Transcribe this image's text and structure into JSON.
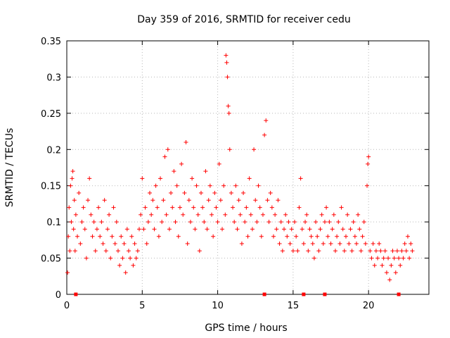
{
  "chart_data": {
    "type": "scatter",
    "title": "Day 359 of 2016, SRMTID for receiver cedu",
    "xlabel": "GPS time / hours",
    "ylabel": "SRMTID / TECUs",
    "xlim": [
      0,
      24
    ],
    "ylim": [
      0,
      0.35
    ],
    "xticks": [
      0,
      5,
      10,
      15,
      20
    ],
    "xtick_labels": [
      "0",
      "5",
      "10",
      "15",
      "20"
    ],
    "yticks": [
      0,
      0.05,
      0.1,
      0.15,
      0.2,
      0.25,
      0.3,
      0.35
    ],
    "ytick_labels": [
      "0",
      "0.05",
      "0.1",
      "0.15",
      "0.2",
      "0.25",
      "0.3",
      "0.35"
    ],
    "grid": true,
    "marker": "+",
    "series_color": "#ff0000",
    "series": [
      {
        "name": "SRMTID",
        "x": [
          0.05,
          0.1,
          0.15,
          0.2,
          0.25,
          0.3,
          0.35,
          0.4,
          0.45,
          0.5,
          0.55,
          0.6,
          0.7,
          0.8,
          0.9,
          1.0,
          1.1,
          1.2,
          1.3,
          1.4,
          1.5,
          1.6,
          1.7,
          1.8,
          1.9,
          2.0,
          2.1,
          2.2,
          2.3,
          2.4,
          2.5,
          2.6,
          2.7,
          2.8,
          2.9,
          3.0,
          3.1,
          3.2,
          3.3,
          3.4,
          3.5,
          3.6,
          3.7,
          3.8,
          3.9,
          4.0,
          4.1,
          4.2,
          4.3,
          4.4,
          4.5,
          4.6,
          4.7,
          4.8,
          4.9,
          5.0,
          5.1,
          5.2,
          5.3,
          5.4,
          5.5,
          5.6,
          5.7,
          5.8,
          5.9,
          6.0,
          6.1,
          6.2,
          6.3,
          6.4,
          6.5,
          6.6,
          6.7,
          6.8,
          6.9,
          7.0,
          7.1,
          7.2,
          7.3,
          7.4,
          7.5,
          7.6,
          7.7,
          7.8,
          7.9,
          8.0,
          8.1,
          8.2,
          8.3,
          8.4,
          8.5,
          8.6,
          8.7,
          8.8,
          8.9,
          9.0,
          9.1,
          9.2,
          9.3,
          9.4,
          9.5,
          9.6,
          9.7,
          9.8,
          9.9,
          10.0,
          10.1,
          10.2,
          10.3,
          10.4,
          10.5,
          10.55,
          10.6,
          10.65,
          10.7,
          10.75,
          10.8,
          10.9,
          11.0,
          11.1,
          11.2,
          11.3,
          11.4,
          11.5,
          11.6,
          11.7,
          11.8,
          11.9,
          12.0,
          12.1,
          12.2,
          12.3,
          12.4,
          12.5,
          12.6,
          12.7,
          12.8,
          12.9,
          13.0,
          13.1,
          13.2,
          13.3,
          13.4,
          13.5,
          13.6,
          13.7,
          13.8,
          13.9,
          14.0,
          14.1,
          14.2,
          14.3,
          14.4,
          14.5,
          14.6,
          14.7,
          14.8,
          14.9,
          15.0,
          15.1,
          15.2,
          15.3,
          15.4,
          15.5,
          15.6,
          15.7,
          15.8,
          15.9,
          16.0,
          16.1,
          16.2,
          16.3,
          16.4,
          16.5,
          16.6,
          16.7,
          16.8,
          16.9,
          17.0,
          17.1,
          17.2,
          17.3,
          17.4,
          17.5,
          17.6,
          17.7,
          17.8,
          17.9,
          18.0,
          18.1,
          18.2,
          18.3,
          18.4,
          18.5,
          18.6,
          18.7,
          18.8,
          18.9,
          19.0,
          19.1,
          19.2,
          19.3,
          19.4,
          19.5,
          19.6,
          19.7,
          19.8,
          19.9,
          19.95,
          20.0,
          20.1,
          20.2,
          20.3,
          20.4,
          20.5,
          20.6,
          20.7,
          20.8,
          20.9,
          21.0,
          21.1,
          21.2,
          21.3,
          21.4,
          21.5,
          21.6,
          21.7,
          21.8,
          21.9,
          22.0,
          22.1,
          22.2,
          22.3,
          22.4,
          22.5,
          22.6,
          22.7,
          22.8,
          22.9
        ],
        "y": [
          0.03,
          0.08,
          0.12,
          0.06,
          0.15,
          0.1,
          0.16,
          0.17,
          0.09,
          0.13,
          0.06,
          0.11,
          0.08,
          0.14,
          0.07,
          0.1,
          0.12,
          0.09,
          0.05,
          0.13,
          0.16,
          0.11,
          0.08,
          0.1,
          0.06,
          0.09,
          0.12,
          0.08,
          0.1,
          0.07,
          0.13,
          0.06,
          0.09,
          0.11,
          0.05,
          0.08,
          0.12,
          0.07,
          0.1,
          0.06,
          0.04,
          0.08,
          0.05,
          0.07,
          0.03,
          0.09,
          0.06,
          0.05,
          0.08,
          0.04,
          0.07,
          0.05,
          0.06,
          0.09,
          0.11,
          0.16,
          0.09,
          0.12,
          0.07,
          0.1,
          0.14,
          0.11,
          0.13,
          0.09,
          0.15,
          0.12,
          0.08,
          0.16,
          0.1,
          0.13,
          0.19,
          0.11,
          0.2,
          0.09,
          0.14,
          0.12,
          0.17,
          0.1,
          0.15,
          0.08,
          0.12,
          0.18,
          0.11,
          0.14,
          0.21,
          0.07,
          0.13,
          0.1,
          0.16,
          0.12,
          0.09,
          0.15,
          0.11,
          0.06,
          0.14,
          0.12,
          0.1,
          0.17,
          0.09,
          0.13,
          0.15,
          0.11,
          0.08,
          0.14,
          0.12,
          0.1,
          0.18,
          0.13,
          0.09,
          0.15,
          0.11,
          0.33,
          0.32,
          0.3,
          0.26,
          0.25,
          0.2,
          0.14,
          0.12,
          0.1,
          0.15,
          0.09,
          0.13,
          0.11,
          0.07,
          0.14,
          0.1,
          0.12,
          0.08,
          0.16,
          0.11,
          0.09,
          0.2,
          0.13,
          0.1,
          0.15,
          0.12,
          0.08,
          0.11,
          0.22,
          0.24,
          0.13,
          0.1,
          0.14,
          0.12,
          0.08,
          0.11,
          0.09,
          0.13,
          0.07,
          0.1,
          0.06,
          0.09,
          0.11,
          0.08,
          0.1,
          0.07,
          0.09,
          0.06,
          0.1,
          0.08,
          0.06,
          0.12,
          0.16,
          0.09,
          0.07,
          0.1,
          0.11,
          0.06,
          0.09,
          0.08,
          0.07,
          0.05,
          0.1,
          0.08,
          0.06,
          0.09,
          0.11,
          0.07,
          0.1,
          0.12,
          0.08,
          0.1,
          0.07,
          0.09,
          0.11,
          0.06,
          0.08,
          0.1,
          0.07,
          0.12,
          0.09,
          0.06,
          0.08,
          0.11,
          0.07,
          0.09,
          0.06,
          0.1,
          0.08,
          0.07,
          0.11,
          0.09,
          0.06,
          0.08,
          0.1,
          0.07,
          0.15,
          0.18,
          0.19,
          0.06,
          0.05,
          0.07,
          0.04,
          0.06,
          0.05,
          0.07,
          0.06,
          0.04,
          0.05,
          0.06,
          0.03,
          0.05,
          0.02,
          0.04,
          0.06,
          0.05,
          0.03,
          0.06,
          0.05,
          0.04,
          0.06,
          0.05,
          0.07,
          0.06,
          0.08,
          0.05,
          0.07,
          0.06
        ]
      }
    ],
    "x_axis_markers": [
      0.6,
      13.1,
      15.7,
      17.1,
      22.0
    ]
  }
}
